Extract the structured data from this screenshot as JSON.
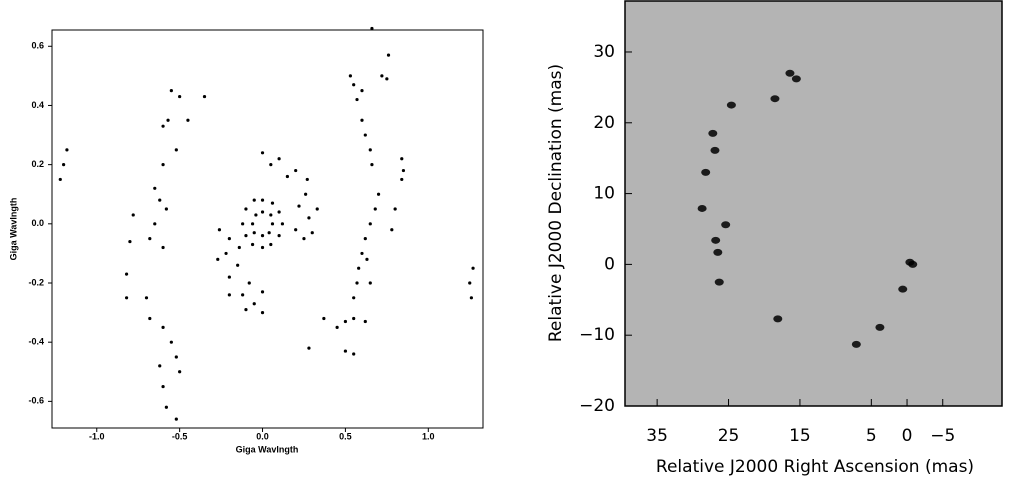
{
  "chart_data": [
    {
      "type": "scatter",
      "xlabel": "Giga Wavlngth",
      "ylabel": "Giga Wavlngth",
      "color": "#000000",
      "xlim": [
        -1.27,
        1.33
      ],
      "ylim": [
        -0.69,
        0.655
      ],
      "xticks": [
        {
          "value": -1,
          "label": "-1.0"
        },
        -0.5,
        {
          "value": 0,
          "label": "0.0"
        },
        0.5,
        {
          "value": 1,
          "label": "1.0"
        }
      ],
      "yticks": [
        -0.6,
        -0.4,
        -0.2,
        {
          "value": 0,
          "label": "0.0"
        },
        0.2,
        0.4,
        0.6
      ],
      "x": [
        0,
        0.06,
        0.1,
        0.12,
        0.1,
        0.05,
        0,
        -0.06,
        -0.1,
        -0.12,
        -0.1,
        -0.05,
        0,
        0.05,
        0.06,
        0.04,
        0,
        -0.05,
        -0.06,
        -0.04,
        0,
        0.1,
        0.2,
        0.26,
        0.28,
        0.25,
        0.15,
        0.22,
        0.2,
        0.05,
        0.27,
        0.33,
        0.3,
        -0.2,
        -0.22,
        -0.2,
        -0.12,
        -0.05,
        -0.14,
        -0.15,
        -0.08,
        0,
        -0.26,
        -0.27,
        -0.2,
        -0.1,
        0,
        0.53,
        0.57,
        0.6,
        0.62,
        0.65,
        0.66,
        0.55,
        0.6,
        0.72,
        0.75,
        0.84,
        0.85,
        0.84,
        0.7,
        0.68,
        0.65,
        0.62,
        0.6,
        0.63,
        0.58,
        0.57,
        0.55,
        0.65,
        0.8,
        0.78,
        0.55,
        0.5,
        0.45,
        0.37,
        0.28,
        0.5,
        0.55,
        0.62,
        0.66,
        0.76,
        -0.55,
        -0.5,
        -0.57,
        -0.6,
        -0.45,
        -0.35,
        -0.52,
        -0.6,
        -0.65,
        -0.62,
        -0.58,
        -0.65,
        -0.68,
        -0.6,
        -0.78,
        -0.8,
        -0.82,
        -0.82,
        -0.7,
        -0.68,
        -0.6,
        -0.55,
        -0.52,
        -0.5,
        -0.62,
        -0.6,
        -0.58,
        -0.52,
        -1.18,
        -1.2,
        -1.22,
        1.25,
        1.26,
        1.27
      ],
      "values": [
        0.08,
        0.07,
        0.04,
        0,
        -0.04,
        -0.07,
        -0.08,
        -0.07,
        -0.04,
        0,
        0.05,
        0.08,
        0.04,
        0.03,
        0,
        -0.03,
        -0.04,
        -0.03,
        0,
        0.03,
        0.24,
        0.22,
        0.18,
        0.1,
        0.02,
        -0.05,
        0.16,
        0.06,
        -0.02,
        0.2,
        0.15,
        0.05,
        -0.03,
        -0.05,
        -0.1,
        -0.18,
        -0.24,
        -0.27,
        -0.08,
        -0.14,
        -0.2,
        -0.23,
        -0.02,
        -0.12,
        -0.24,
        -0.29,
        -0.3,
        0.5,
        0.42,
        0.35,
        0.3,
        0.25,
        0.2,
        0.47,
        0.45,
        0.5,
        0.49,
        0.22,
        0.18,
        0.15,
        0.1,
        0.05,
        0,
        -0.05,
        -0.1,
        -0.12,
        -0.15,
        -0.2,
        -0.25,
        -0.2,
        0.05,
        -0.02,
        -0.32,
        -0.33,
        -0.35,
        -0.32,
        -0.42,
        -0.43,
        -0.44,
        -0.33,
        0.66,
        0.57,
        0.45,
        0.43,
        0.35,
        0.33,
        0.35,
        0.43,
        0.25,
        0.2,
        0.12,
        0.08,
        0.05,
        0,
        -0.05,
        -0.08,
        0.03,
        -0.06,
        -0.17,
        -0.25,
        -0.25,
        -0.32,
        -0.35,
        -0.4,
        -0.45,
        -0.5,
        -0.48,
        -0.55,
        -0.62,
        -0.66,
        0.25,
        0.2,
        0.15,
        -0.2,
        -0.25,
        -0.15
      ]
    },
    {
      "type": "image",
      "xlabel": "Relative J2000 Right Ascension (mas)",
      "ylabel": "Relative J2000 Declination (mas)",
      "color": "#000000",
      "background": "#b4b4b4",
      "xlim": [
        39.5,
        -13.3
      ],
      "ylim": [
        -20,
        37.2
      ],
      "xticks": [
        35,
        25,
        15,
        5,
        0,
        {
          "value": -5,
          "label": "−5"
        }
      ],
      "yticks": [
        {
          "value": -20,
          "label": "−20"
        },
        {
          "value": -10,
          "label": "−10"
        },
        0,
        10,
        20,
        30
      ],
      "x": [
        16.4,
        15.5,
        18.5,
        24.6,
        27.2,
        26.9,
        28.2,
        28.7,
        25.4,
        26.8,
        26.5,
        26.3,
        -0.4,
        -0.8,
        0.6,
        18.1,
        3.8,
        7.1
      ],
      "values": [
        27,
        26.2,
        23.4,
        22.5,
        18.5,
        16.1,
        13,
        7.9,
        5.6,
        3.4,
        1.7,
        -2.5,
        0.3,
        0,
        -3.5,
        -7.7,
        -8.9,
        -11.3
      ]
    }
  ]
}
